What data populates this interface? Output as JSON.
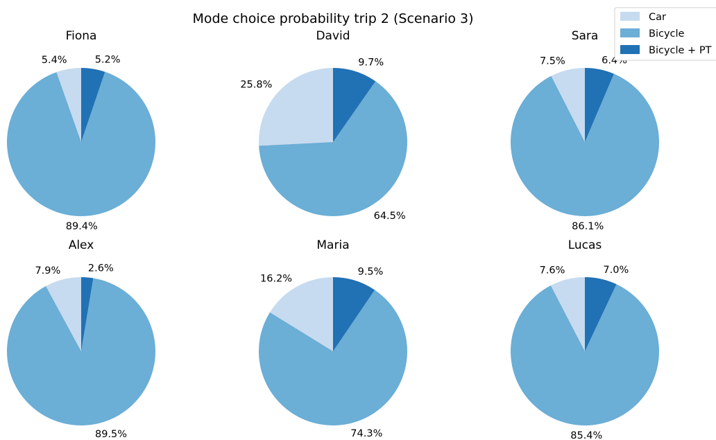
{
  "chart_data": {
    "type": "pie",
    "title": "Mode choice probability trip 2 (Scenario 3)",
    "legend": {
      "placement": "top-right",
      "entries": [
        "Car",
        "Bicycle",
        "Bicycle + PT"
      ]
    },
    "series_colors": [
      "#c6dbef",
      "#6baed6",
      "#2171b5"
    ],
    "charts": [
      {
        "title": "Fiona",
        "values": [
          5.4,
          89.4,
          5.2
        ],
        "labels": [
          "5.4%",
          "89.4%",
          "5.2%"
        ]
      },
      {
        "title": "David",
        "values": [
          25.8,
          64.5,
          9.7
        ],
        "labels": [
          "25.8%",
          "64.5%",
          "9.7%"
        ]
      },
      {
        "title": "Sara",
        "values": [
          7.5,
          86.1,
          6.4
        ],
        "labels": [
          "7.5%",
          "86.1%",
          "6.4%"
        ]
      },
      {
        "title": "Alex",
        "values": [
          7.9,
          89.5,
          2.6
        ],
        "labels": [
          "7.9%",
          "89.5%",
          "2.6%"
        ]
      },
      {
        "title": "Maria",
        "values": [
          16.2,
          74.3,
          9.5
        ],
        "labels": [
          "16.2%",
          "74.3%",
          "9.5%"
        ]
      },
      {
        "title": "Lucas",
        "values": [
          7.6,
          85.4,
          7.0
        ],
        "labels": [
          "7.6%",
          "85.4%",
          "7.0%"
        ]
      }
    ]
  }
}
